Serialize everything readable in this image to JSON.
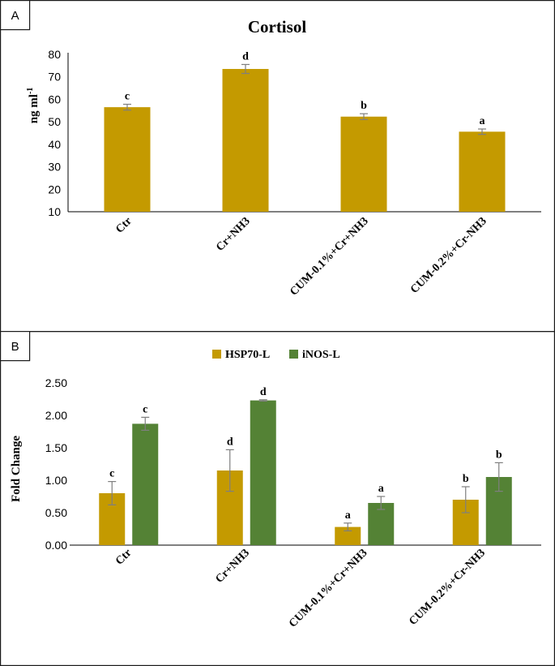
{
  "colors": {
    "hsp70": "#C49A00",
    "inos": "#548235",
    "cortisol": "#C49A00",
    "error": "#7f7f7f"
  },
  "chart_data": [
    {
      "panel": "A",
      "type": "bar",
      "title": "Cortisol",
      "ylabel": "ng ml",
      "ylabel_superscript": "-1",
      "ylim": [
        10,
        80
      ],
      "yticks": [
        10,
        20,
        30,
        40,
        50,
        60,
        70,
        80
      ],
      "categories": [
        "Ctr",
        "Cr+NH3",
        "CUM-0.1%+Cr+NH3",
        "CUM-0.2%+Cr-NH3"
      ],
      "series": [
        {
          "name": "Cortisol",
          "values": [
            56.5,
            73.5,
            52.3,
            45.6
          ],
          "errors": [
            1.3,
            2.0,
            1.3,
            1.2
          ],
          "labels": [
            "c",
            "d",
            "b",
            "a"
          ]
        }
      ]
    },
    {
      "panel": "B",
      "type": "bar",
      "title": "",
      "ylabel": "Fold Change",
      "ylim": [
        0,
        2.5
      ],
      "yticks": [
        "0.00",
        "0.50",
        "1.00",
        "1.50",
        "2.00",
        "2.50"
      ],
      "legend_position": "top-center",
      "categories": [
        "Ctr",
        "Cr+NH3",
        "CUM-0.1%+Cr+NH3",
        "CUM-0.2%+Cr-NH3"
      ],
      "series": [
        {
          "name": "HSP70-L",
          "values": [
            0.8,
            1.15,
            0.28,
            0.7
          ],
          "errors": [
            0.18,
            0.32,
            0.06,
            0.2
          ],
          "labels": [
            "c",
            "d",
            "a",
            "b"
          ]
        },
        {
          "name": "iNOS-L",
          "values": [
            1.87,
            2.23,
            0.65,
            1.05
          ],
          "errors": [
            0.1,
            0.01,
            0.1,
            0.22
          ],
          "labels": [
            "c",
            "d",
            "a",
            "b"
          ]
        }
      ]
    }
  ]
}
